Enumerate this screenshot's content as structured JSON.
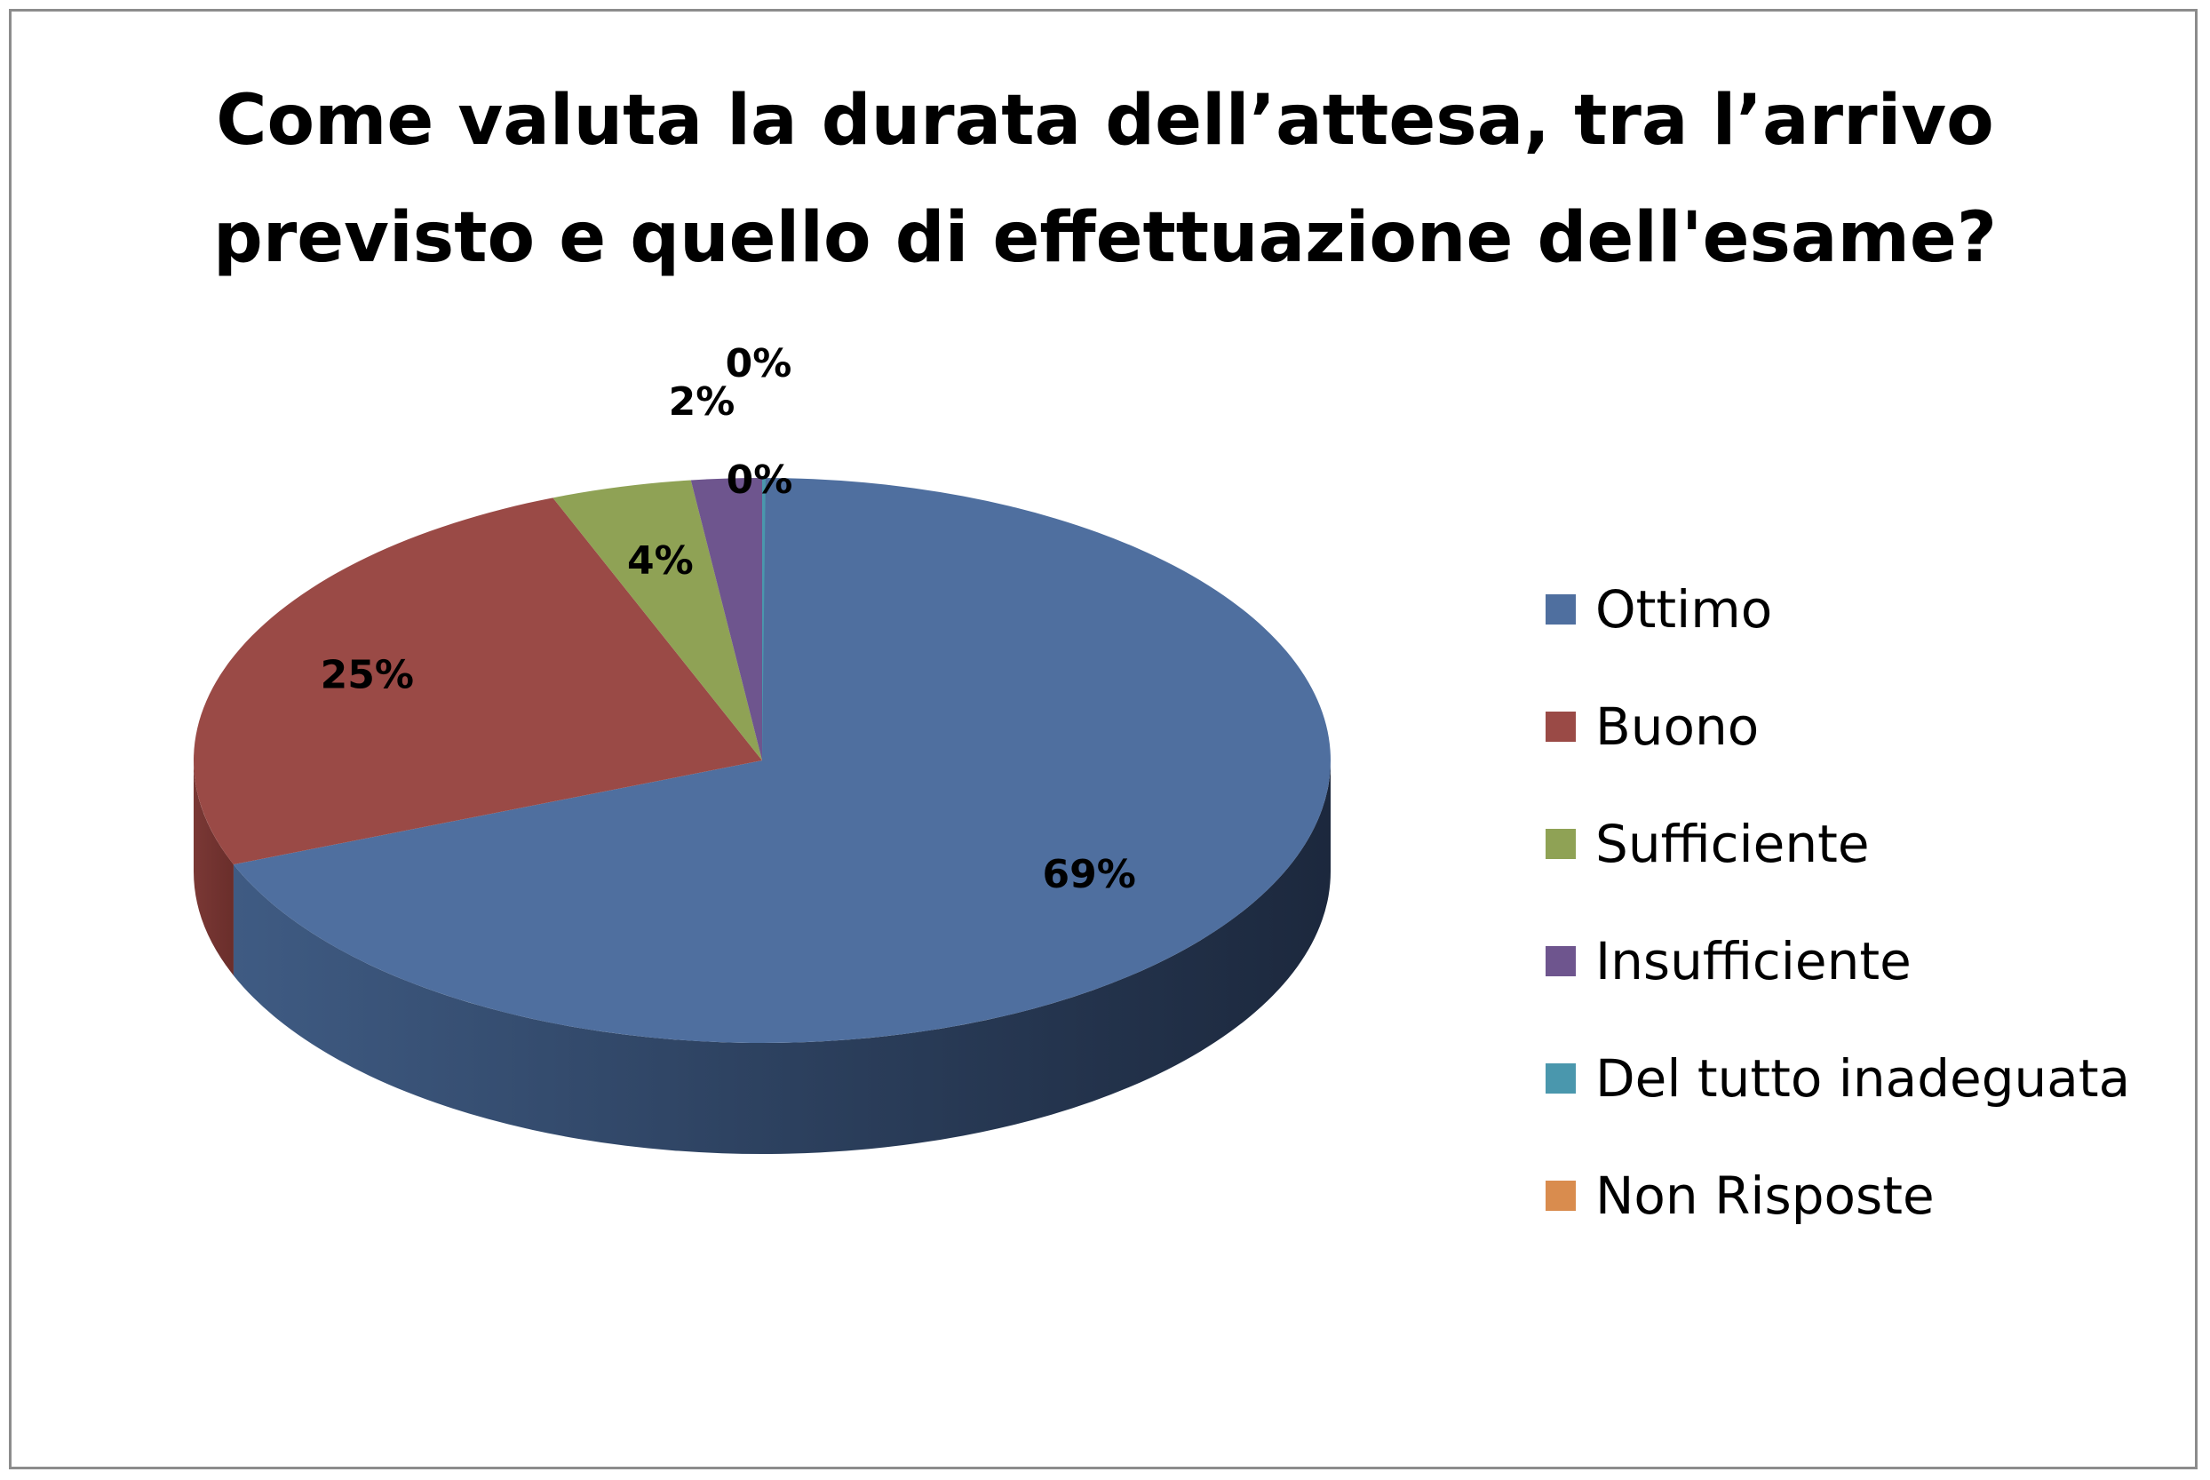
{
  "chart_data": {
    "type": "pie",
    "title_lines": [
      "Come valuta la durata dell’attesa, tra l’arrivo",
      "previsto e quello di effettuazione dell'esame?"
    ],
    "categories": [
      "Ottimo",
      "Buono",
      "Sufficiente",
      "Insufficiente",
      "Del tutto inadeguata",
      "Non Risposte"
    ],
    "values": [
      69,
      25,
      4,
      2,
      0,
      0
    ],
    "value_labels": [
      "69%",
      "25%",
      "4%",
      "2%",
      "0%",
      "0%"
    ],
    "colors": [
      "#4F6F9F",
      "#9A4A46",
      "#8FA255",
      "#6E558E",
      "#4A97AD",
      "#D98C4E"
    ],
    "legend_position": "right",
    "style": "3d"
  }
}
